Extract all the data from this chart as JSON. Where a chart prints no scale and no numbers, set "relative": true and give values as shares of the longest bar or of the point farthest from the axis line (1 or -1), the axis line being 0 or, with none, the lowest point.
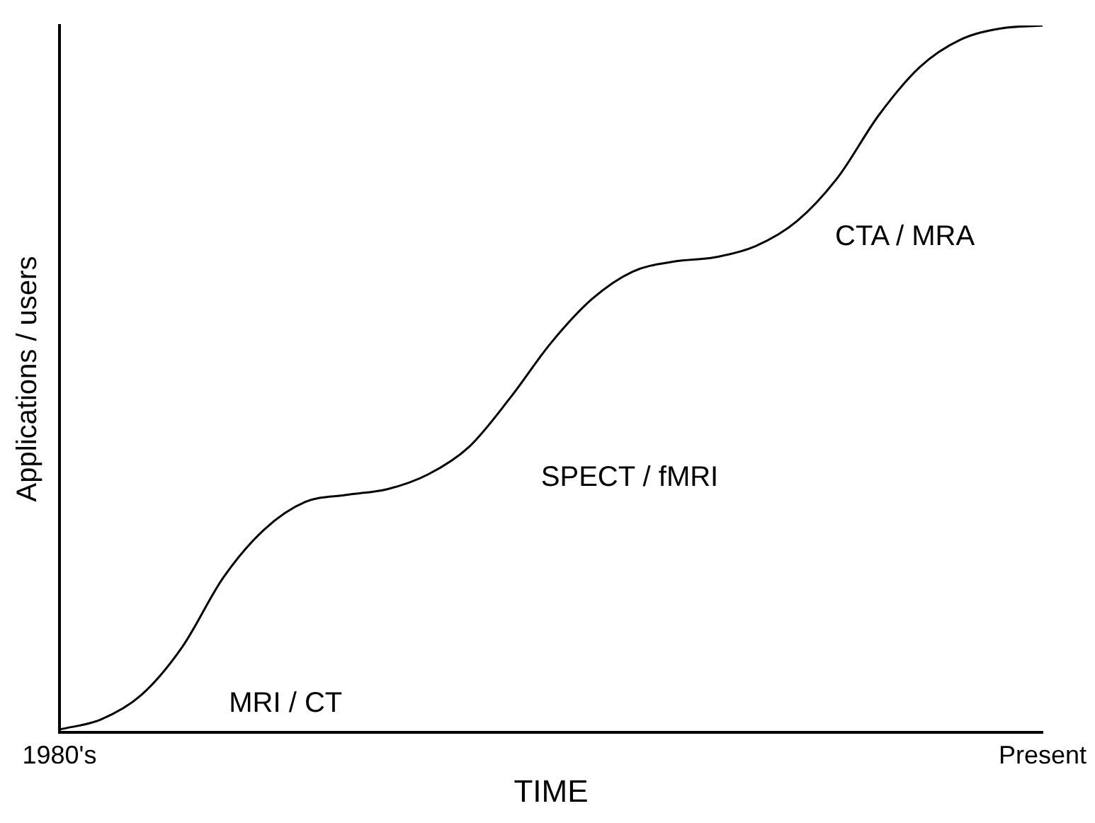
{
  "chart_data": {
    "type": "line",
    "relative": true,
    "xlabel": "TIME",
    "ylabel": "Applications / users",
    "categories": [
      "1980's",
      null,
      null,
      null,
      null,
      null,
      null,
      null,
      null,
      null,
      null,
      null,
      null,
      null,
      null,
      null,
      null,
      null,
      null,
      null,
      null,
      null,
      null,
      null,
      "Present"
    ],
    "series": [
      {
        "color": "#000000",
        "values": [
          0.004,
          0.018,
          0.053,
          0.121,
          0.219,
          0.287,
          0.326,
          0.336,
          0.344,
          0.365,
          0.404,
          0.473,
          0.551,
          0.613,
          0.652,
          0.666,
          0.672,
          0.688,
          0.723,
          0.785,
          0.873,
          0.941,
          0.98,
          0.996,
          1
        ]
      }
    ],
    "annotations": [
      "MRI / CT",
      "SPECT / fMRI",
      "CTA / MRA"
    ],
    "marker": "none",
    "line_style": "solid",
    "grid": false,
    "legend": false
  }
}
